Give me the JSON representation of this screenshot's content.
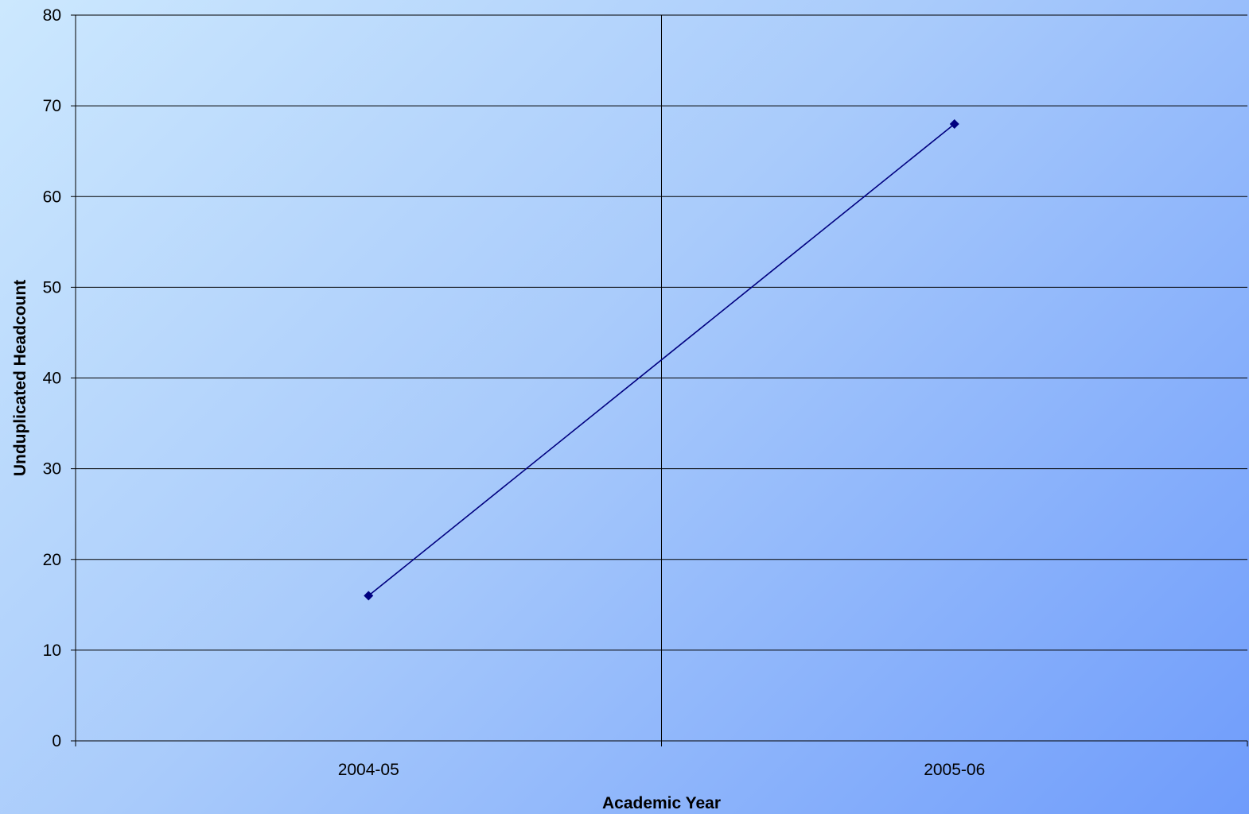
{
  "chart_data": {
    "type": "line",
    "title": "",
    "xlabel": "Academic Year",
    "ylabel": "Unduplicated Headcount",
    "categories": [
      "2004-05",
      "2005-06"
    ],
    "series": [
      {
        "values": [
          16,
          68
        ],
        "color": "#000080",
        "marker": "diamond"
      }
    ],
    "ylim": [
      0,
      80
    ],
    "yticks": [
      0,
      10,
      20,
      30,
      40,
      50,
      60,
      70,
      80
    ],
    "grid": true,
    "legend": "none",
    "line_color": "#000080"
  }
}
